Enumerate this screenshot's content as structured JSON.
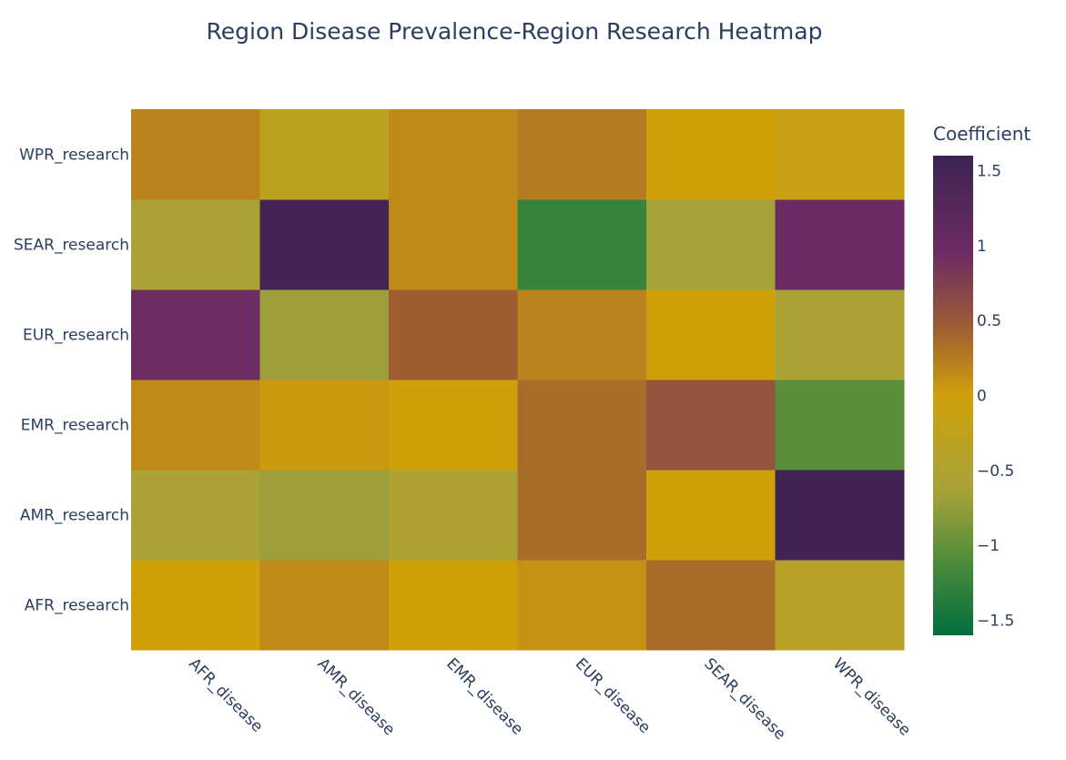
{
  "chart_data": {
    "type": "heatmap",
    "title": "Region Disease Prevalence-Region Research Heatmap",
    "x_categories": [
      "AFR_disease",
      "AMR_disease",
      "EMR_disease",
      "EUR_disease",
      "SEAR_disease",
      "WPR_disease"
    ],
    "y_categories": [
      "AFR_research",
      "AMR_research",
      "EMR_research",
      "EUR_research",
      "SEAR_research",
      "WPR_research"
    ],
    "z": [
      [
        0.0,
        0.15,
        0.0,
        0.1,
        0.35,
        -0.4
      ],
      [
        -0.6,
        -0.7,
        -0.55,
        0.35,
        0.0,
        1.55
      ],
      [
        0.15,
        0.05,
        0.0,
        0.35,
        0.55,
        -1.05
      ],
      [
        0.95,
        -0.7,
        0.45,
        0.2,
        0.0,
        -0.6
      ],
      [
        -0.6,
        1.5,
        0.15,
        -1.25,
        -0.65,
        1.0
      ],
      [
        0.2,
        -0.3,
        0.15,
        0.25,
        0.0,
        -0.15
      ]
    ],
    "zmin": -1.6,
    "zmax": 1.6,
    "colorscale": [
      [
        0.0,
        "#006f3c"
      ],
      [
        0.15,
        "#4b8b3b"
      ],
      [
        0.3,
        "#a8a23a"
      ],
      [
        0.5,
        "#d0a00b"
      ],
      [
        0.65,
        "#9b5a35"
      ],
      [
        0.8,
        "#6c2b63"
      ],
      [
        1.0,
        "#3d2352"
      ]
    ],
    "colorbar": {
      "title": "Coefficient",
      "tick_values": [
        1.5,
        1,
        0.5,
        0,
        -0.5,
        -1,
        -1.5
      ],
      "tick_labels": [
        "1.5",
        "1",
        "0.5",
        "0",
        "−0.5",
        "−1",
        "−1.5"
      ]
    }
  }
}
